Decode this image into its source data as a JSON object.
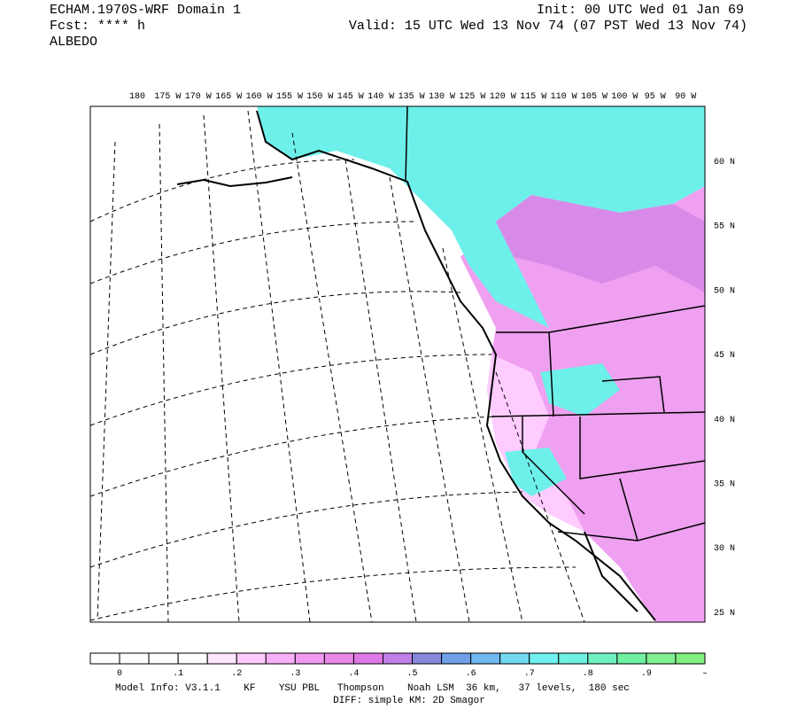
{
  "header": {
    "title": "ECHAM.1970S-WRF Domain 1",
    "init": "Init: 00 UTC Wed 01 Jan 69",
    "forecast": "Fcst: **** h",
    "valid": "Valid: 15 UTC Wed 13 Nov 74 (07 PST Wed 13 Nov 74)",
    "field": "ALBEDO"
  },
  "map": {
    "longitude_labels": [
      "180",
      "175 W",
      "170 W",
      "165 W",
      "160 W",
      "155 W",
      "150 W",
      "145 W",
      "140 W",
      "135 W",
      "130 W",
      "125 W",
      "120 W",
      "115 W",
      "110 W",
      "105 W",
      "100 W",
      "95 W",
      "90 W"
    ],
    "latitude_labels": [
      "60 N",
      "55 N",
      "50 N",
      "45 N",
      "40 N",
      "35 N",
      "30 N",
      "25 N"
    ]
  },
  "colorbar": {
    "colors": [
      "#ffffff",
      "#ffffff",
      "#ffffff",
      "#ffffff",
      "#ffe6ff",
      "#ffccff",
      "#f7b0f7",
      "#f099f0",
      "#ea88ea",
      "#e07ae8",
      "#c080e8",
      "#8888dd",
      "#70a0e8",
      "#70b8f0",
      "#70d8f0",
      "#70f0f0",
      "#70f0e0",
      "#70f0c0",
      "#70f0a0",
      "#80f090",
      "#80f080"
    ],
    "labels": [
      "0",
      ".1",
      ".2",
      ".3",
      ".4",
      ".5",
      ".6",
      ".7",
      ".8",
      ".9",
      "–"
    ]
  },
  "footer": {
    "model_info": "Model Info: V3.1.1    KF    YSU PBL   Thompson    Noah LSM  36 km,   37 levels,  180 sec",
    "diff": "DIFF: simple KM: 2D Smagor"
  }
}
